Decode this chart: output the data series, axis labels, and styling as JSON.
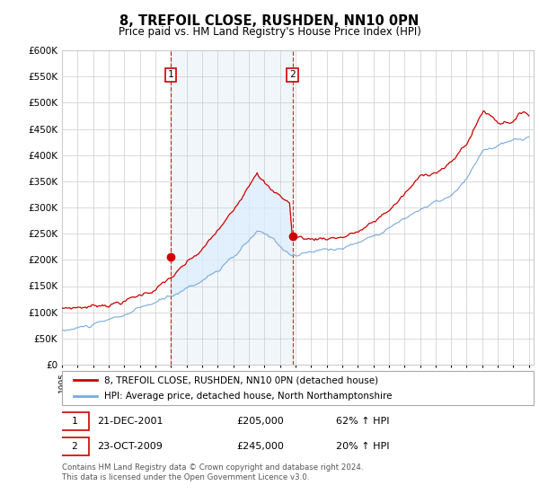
{
  "title": "8, TREFOIL CLOSE, RUSHDEN, NN10 0PN",
  "subtitle": "Price paid vs. HM Land Registry's House Price Index (HPI)",
  "ylim": [
    0,
    600000
  ],
  "yticks": [
    0,
    50000,
    100000,
    150000,
    200000,
    250000,
    300000,
    350000,
    400000,
    450000,
    500000,
    550000,
    600000
  ],
  "hpi_color": "#7aaadd",
  "price_color": "#cc0000",
  "shading_color": "#ddeeff",
  "grid_color": "#cccccc",
  "sale1_date": "21-DEC-2001",
  "sale1_price": 205000,
  "sale1_hpi": "62% ↑ HPI",
  "sale1_label": "1",
  "sale2_date": "23-OCT-2009",
  "sale2_price": 245000,
  "sale2_hpi": "20% ↑ HPI",
  "sale2_label": "2",
  "legend1": "8, TREFOIL CLOSE, RUSHDEN, NN10 0PN (detached house)",
  "legend2": "HPI: Average price, detached house, North Northamptonshire",
  "footer": "Contains HM Land Registry data © Crown copyright and database right 2024.\nThis data is licensed under the Open Government Licence v3.0.",
  "sale1_x": 2001.97,
  "sale2_x": 2009.81
}
